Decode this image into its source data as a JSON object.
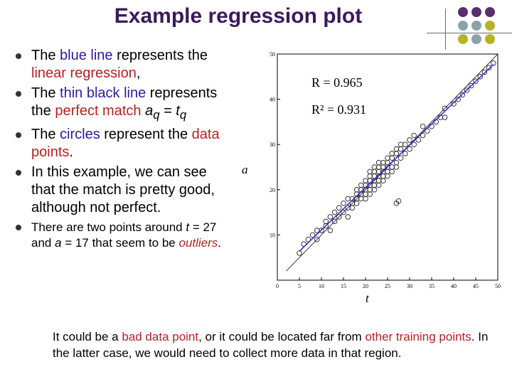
{
  "title": "Example regression plot",
  "colors": {
    "title": "#3b1a5c",
    "highlight": "#b22222",
    "accent": "#2e1a9a",
    "dots": [
      "#5a2d6e",
      "#5a2d6e",
      "#8aa3a6",
      "#b5b22a",
      "#8aa3a6",
      "#b5b22a"
    ]
  },
  "bullets": {
    "b1": {
      "t1": "The ",
      "h1": "blue line",
      "t2": " represents the ",
      "h2": "linear regression",
      "t3": ","
    },
    "b2": {
      "t1": "The ",
      "h1": "thin black line",
      "t2": " represents the ",
      "h2": "perfect match",
      "t3": " a",
      "sub1": "q",
      "t4": " = t",
      "sub2": "q"
    },
    "b3": {
      "t1": "The ",
      "h1": "circles",
      "t2": " represent the ",
      "h2": "data points",
      "t3": "."
    },
    "b4": {
      "t1": "In this example, we can see that the match is pretty good, although not perfect."
    },
    "b5": {
      "t1": "There are two points around ",
      "v1": "t",
      "t2": " = 27 and ",
      "v2": "a",
      "t3": " = 17 that seem to be ",
      "h1": "outliers",
      "t4": "."
    }
  },
  "note": {
    "t1": "It could be a ",
    "h1": "bad data point",
    "t2": ", or it could be located far from ",
    "h2": "other training points",
    "t3": ". In the latter case, we would need to collect more data in that region."
  },
  "chart_data": {
    "type": "scatter",
    "xlabel": "t",
    "ylabel": "a",
    "xlim": [
      0,
      50
    ],
    "ylim": [
      0,
      50
    ],
    "xticks": [
      "0",
      "5",
      "10",
      "15",
      "20",
      "25",
      "30",
      "35",
      "40",
      "45",
      "50"
    ],
    "yticks": [
      "10",
      "20",
      "30",
      "40",
      "50"
    ],
    "annotations": [
      "R = 0.965",
      "R² = 0.931"
    ],
    "series": [
      {
        "type": "scatter",
        "x": [
          5,
          6,
          7,
          8,
          9,
          9,
          10,
          11,
          11,
          12,
          12,
          13,
          13,
          14,
          14,
          15,
          15,
          16,
          16,
          16,
          17,
          17,
          17,
          18,
          18,
          18,
          18,
          19,
          19,
          19,
          19,
          20,
          20,
          20,
          20,
          20,
          21,
          21,
          21,
          21,
          21,
          21,
          22,
          22,
          22,
          22,
          22,
          22,
          23,
          23,
          23,
          23,
          23,
          23,
          24,
          24,
          24,
          24,
          24,
          25,
          25,
          25,
          25,
          25,
          26,
          26,
          26,
          26,
          27,
          27,
          27,
          27,
          28,
          28,
          28,
          29,
          29,
          30,
          30,
          31,
          31,
          32,
          33,
          33,
          34,
          35,
          36,
          37,
          38,
          38,
          40,
          41,
          42,
          43,
          44,
          45,
          46,
          47,
          48,
          49,
          27,
          27.5
        ],
        "y": [
          6,
          8,
          9,
          10,
          9,
          11,
          11,
          12,
          13,
          11,
          14,
          13,
          15,
          14,
          16,
          15,
          17,
          14,
          16,
          18,
          16,
          18,
          17,
          17,
          19,
          18,
          20,
          18,
          20,
          19,
          21,
          19,
          21,
          20,
          22,
          18,
          20,
          22,
          21,
          23,
          19,
          24,
          21,
          23,
          22,
          20,
          24,
          25,
          22,
          24,
          23,
          21,
          25,
          26,
          23,
          25,
          22,
          26,
          24,
          24,
          26,
          23,
          27,
          25,
          25,
          27,
          24,
          28,
          26,
          28,
          25,
          29,
          27,
          29,
          30,
          28,
          30,
          29,
          31,
          30,
          32,
          31,
          32,
          34,
          33,
          34,
          35,
          36,
          36,
          38,
          39,
          40,
          41,
          42,
          43,
          44,
          45,
          46,
          47,
          48,
          17,
          17.5
        ]
      },
      {
        "type": "line",
        "x": [
          5,
          49
        ],
        "y": [
          6.4,
          47.7
        ]
      },
      {
        "type": "line",
        "x": [
          2,
          50
        ],
        "y": [
          2,
          50
        ]
      }
    ],
    "grid": false
  }
}
